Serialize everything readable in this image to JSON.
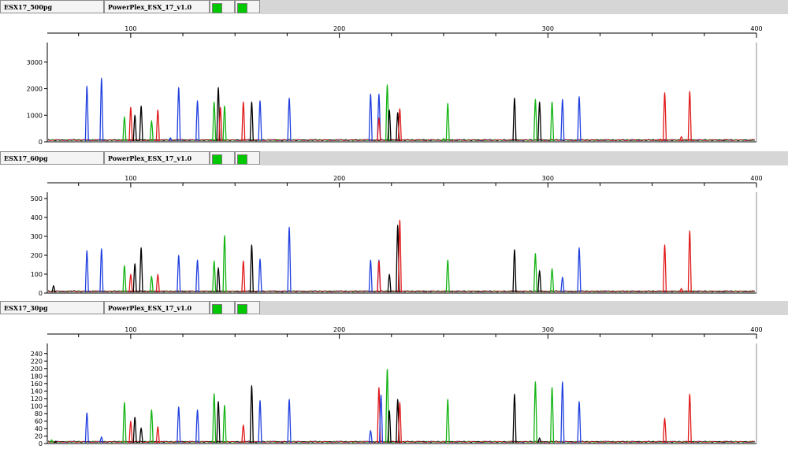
{
  "panels": [
    {
      "sample": "ESX17_500pg",
      "panel_name": "PowerPlex_ESX_17_v1.0",
      "swatch_color": "#00c800"
    },
    {
      "sample": "ESX17_60pg",
      "panel_name": "PowerPlex_ESX_17_v1.0",
      "swatch_color": "#00c800"
    },
    {
      "sample": "ESX17_30pg",
      "panel_name": "PowerPlex_ESX_17_v1.0",
      "swatch_color": "#00c800"
    }
  ],
  "colors": {
    "blue": "#1f3fe0",
    "green": "#12b412",
    "black": "#000000",
    "red": "#e01818"
  },
  "chart_data": [
    {
      "type": "line",
      "xlim": [
        60,
        400
      ],
      "ylim": [
        0,
        3500
      ],
      "x_ticks": [
        100,
        200,
        300,
        400
      ],
      "y_ticks": [
        0,
        1000,
        2000,
        3000
      ],
      "peaks": [
        {
          "x": 79,
          "h": 2100,
          "c": "blue"
        },
        {
          "x": 86,
          "h": 2400,
          "c": "blue"
        },
        {
          "x": 97,
          "h": 950,
          "c": "green"
        },
        {
          "x": 100,
          "h": 1300,
          "c": "red"
        },
        {
          "x": 102,
          "h": 1000,
          "c": "black"
        },
        {
          "x": 105,
          "h": 1350,
          "c": "black"
        },
        {
          "x": 110,
          "h": 800,
          "c": "green"
        },
        {
          "x": 113,
          "h": 1200,
          "c": "red"
        },
        {
          "x": 119,
          "h": 150,
          "c": "blue"
        },
        {
          "x": 123,
          "h": 2050,
          "c": "blue"
        },
        {
          "x": 132,
          "h": 1550,
          "c": "blue"
        },
        {
          "x": 140,
          "h": 1500,
          "c": "green"
        },
        {
          "x": 142,
          "h": 2050,
          "c": "black"
        },
        {
          "x": 143,
          "h": 1300,
          "c": "red"
        },
        {
          "x": 145,
          "h": 1350,
          "c": "green"
        },
        {
          "x": 154,
          "h": 1500,
          "c": "red"
        },
        {
          "x": 158,
          "h": 1500,
          "c": "black"
        },
        {
          "x": 162,
          "h": 1550,
          "c": "blue"
        },
        {
          "x": 176,
          "h": 1650,
          "c": "blue"
        },
        {
          "x": 215,
          "h": 1800,
          "c": "blue"
        },
        {
          "x": 219,
          "h": 1800,
          "c": "blue"
        },
        {
          "x": 219,
          "h": 900,
          "c": "red"
        },
        {
          "x": 223,
          "h": 2150,
          "c": "green"
        },
        {
          "x": 224,
          "h": 1200,
          "c": "black"
        },
        {
          "x": 228,
          "h": 1100,
          "c": "black"
        },
        {
          "x": 229,
          "h": 1250,
          "c": "red"
        },
        {
          "x": 250,
          "h": 120,
          "c": "green"
        },
        {
          "x": 252,
          "h": 1450,
          "c": "green"
        },
        {
          "x": 284,
          "h": 1650,
          "c": "black"
        },
        {
          "x": 294,
          "h": 1600,
          "c": "green"
        },
        {
          "x": 296,
          "h": 1500,
          "c": "black"
        },
        {
          "x": 302,
          "h": 1500,
          "c": "green"
        },
        {
          "x": 307,
          "h": 1600,
          "c": "blue"
        },
        {
          "x": 315,
          "h": 1700,
          "c": "blue"
        },
        {
          "x": 354,
          "h": 100,
          "c": "red"
        },
        {
          "x": 356,
          "h": 1850,
          "c": "red"
        },
        {
          "x": 364,
          "h": 200,
          "c": "red"
        },
        {
          "x": 368,
          "h": 1900,
          "c": "red"
        }
      ]
    },
    {
      "type": "line",
      "xlim": [
        60,
        400
      ],
      "ylim": [
        0,
        500
      ],
      "x_ticks": [
        100,
        200,
        300,
        400
      ],
      "y_ticks": [
        0,
        100,
        200,
        300,
        400,
        500
      ],
      "peaks": [
        {
          "x": 63,
          "h": 40,
          "c": "black"
        },
        {
          "x": 79,
          "h": 225,
          "c": "blue"
        },
        {
          "x": 86,
          "h": 235,
          "c": "blue"
        },
        {
          "x": 97,
          "h": 145,
          "c": "green"
        },
        {
          "x": 100,
          "h": 100,
          "c": "red"
        },
        {
          "x": 102,
          "h": 155,
          "c": "black"
        },
        {
          "x": 105,
          "h": 240,
          "c": "black"
        },
        {
          "x": 110,
          "h": 90,
          "c": "green"
        },
        {
          "x": 113,
          "h": 100,
          "c": "red"
        },
        {
          "x": 123,
          "h": 200,
          "c": "blue"
        },
        {
          "x": 132,
          "h": 175,
          "c": "blue"
        },
        {
          "x": 140,
          "h": 170,
          "c": "green"
        },
        {
          "x": 142,
          "h": 135,
          "c": "black"
        },
        {
          "x": 145,
          "h": 305,
          "c": "green"
        },
        {
          "x": 154,
          "h": 170,
          "c": "red"
        },
        {
          "x": 158,
          "h": 255,
          "c": "black"
        },
        {
          "x": 162,
          "h": 180,
          "c": "blue"
        },
        {
          "x": 176,
          "h": 350,
          "c": "blue"
        },
        {
          "x": 215,
          "h": 175,
          "c": "blue"
        },
        {
          "x": 219,
          "h": 175,
          "c": "blue"
        },
        {
          "x": 219,
          "h": 170,
          "c": "red"
        },
        {
          "x": 224,
          "h": 100,
          "c": "black"
        },
        {
          "x": 228,
          "h": 360,
          "c": "black"
        },
        {
          "x": 229,
          "h": 385,
          "c": "red"
        },
        {
          "x": 252,
          "h": 175,
          "c": "green"
        },
        {
          "x": 284,
          "h": 230,
          "c": "black"
        },
        {
          "x": 294,
          "h": 210,
          "c": "green"
        },
        {
          "x": 296,
          "h": 120,
          "c": "black"
        },
        {
          "x": 302,
          "h": 130,
          "c": "green"
        },
        {
          "x": 307,
          "h": 85,
          "c": "blue"
        },
        {
          "x": 315,
          "h": 240,
          "c": "blue"
        },
        {
          "x": 356,
          "h": 255,
          "c": "red"
        },
        {
          "x": 364,
          "h": 25,
          "c": "red"
        },
        {
          "x": 368,
          "h": 330,
          "c": "red"
        }
      ]
    },
    {
      "type": "line",
      "xlim": [
        60,
        400
      ],
      "ylim": [
        0,
        250
      ],
      "x_ticks": [
        100,
        200,
        300,
        400
      ],
      "y_ticks": [
        0,
        20,
        40,
        60,
        80,
        100,
        120,
        140,
        160,
        180,
        200,
        220,
        240
      ],
      "peaks": [
        {
          "x": 62,
          "h": 10,
          "c": "green"
        },
        {
          "x": 64,
          "h": 6,
          "c": "black"
        },
        {
          "x": 79,
          "h": 82,
          "c": "blue"
        },
        {
          "x": 86,
          "h": 18,
          "c": "blue"
        },
        {
          "x": 97,
          "h": 110,
          "c": "green"
        },
        {
          "x": 100,
          "h": 60,
          "c": "red"
        },
        {
          "x": 102,
          "h": 70,
          "c": "black"
        },
        {
          "x": 105,
          "h": 42,
          "c": "black"
        },
        {
          "x": 110,
          "h": 90,
          "c": "green"
        },
        {
          "x": 113,
          "h": 45,
          "c": "red"
        },
        {
          "x": 123,
          "h": 98,
          "c": "blue"
        },
        {
          "x": 132,
          "h": 90,
          "c": "blue"
        },
        {
          "x": 140,
          "h": 133,
          "c": "green"
        },
        {
          "x": 142,
          "h": 112,
          "c": "black"
        },
        {
          "x": 145,
          "h": 102,
          "c": "green"
        },
        {
          "x": 154,
          "h": 50,
          "c": "red"
        },
        {
          "x": 158,
          "h": 155,
          "c": "black"
        },
        {
          "x": 162,
          "h": 115,
          "c": "blue"
        },
        {
          "x": 176,
          "h": 118,
          "c": "blue"
        },
        {
          "x": 215,
          "h": 35,
          "c": "blue"
        },
        {
          "x": 219,
          "h": 150,
          "c": "red"
        },
        {
          "x": 220,
          "h": 130,
          "c": "blue"
        },
        {
          "x": 223,
          "h": 198,
          "c": "green"
        },
        {
          "x": 224,
          "h": 88,
          "c": "black"
        },
        {
          "x": 228,
          "h": 118,
          "c": "black"
        },
        {
          "x": 229,
          "h": 110,
          "c": "red"
        },
        {
          "x": 252,
          "h": 118,
          "c": "green"
        },
        {
          "x": 284,
          "h": 132,
          "c": "black"
        },
        {
          "x": 294,
          "h": 165,
          "c": "green"
        },
        {
          "x": 296,
          "h": 15,
          "c": "black"
        },
        {
          "x": 302,
          "h": 150,
          "c": "green"
        },
        {
          "x": 307,
          "h": 165,
          "c": "blue"
        },
        {
          "x": 315,
          "h": 112,
          "c": "blue"
        },
        {
          "x": 356,
          "h": 68,
          "c": "red"
        },
        {
          "x": 368,
          "h": 132,
          "c": "red"
        }
      ]
    }
  ]
}
